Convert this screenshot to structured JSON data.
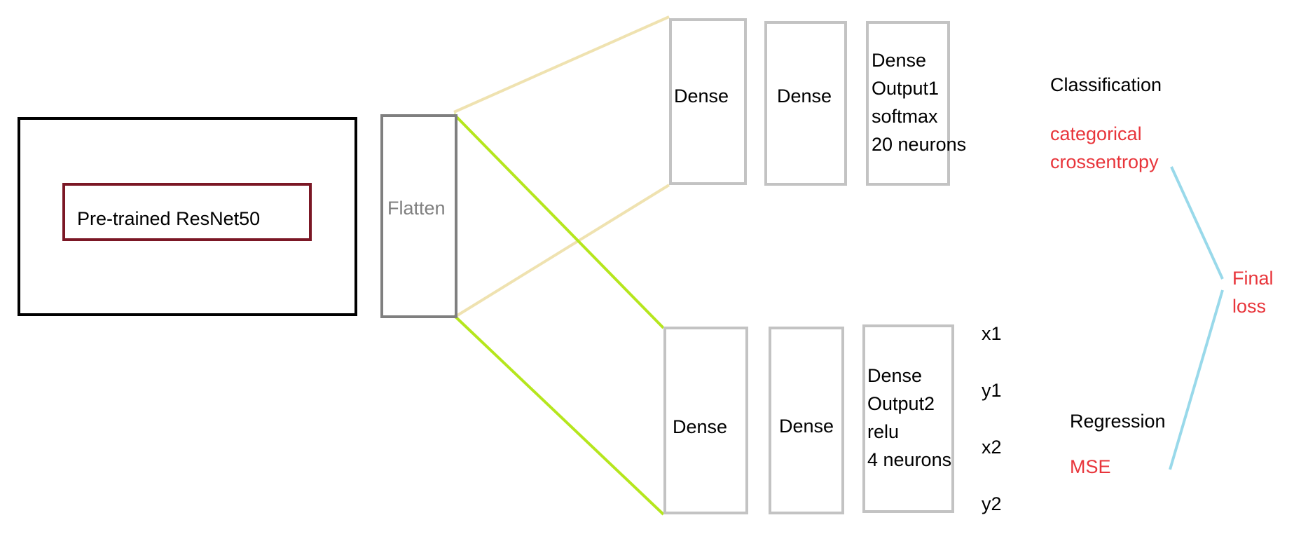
{
  "backbone": {
    "label": "Pre-trained ResNet50"
  },
  "flatten": {
    "label": "Flatten"
  },
  "classification_branch": {
    "dense1": "Dense",
    "dense2": "Dense",
    "output": "Dense\nOutput1\nsoftmax\n20 neurons",
    "task": "Classification",
    "loss": "categorical\ncrossentropy"
  },
  "regression_branch": {
    "dense1": "Dense",
    "dense2": "Dense",
    "output": "Dense\nOutput2\nrelu\n4 neurons",
    "outputs": [
      "x1",
      "y1",
      "x2",
      "y2"
    ],
    "task": "Regression",
    "loss": "MSE"
  },
  "final_loss": {
    "label": "Final\nloss"
  },
  "colors": {
    "backbone_outer": "#000000",
    "backbone_inner": "#7b1725",
    "flatten_border": "#7f7f7f",
    "dense_border": "#c3c3c3",
    "classification_connector": "#efe2b0",
    "regression_connector": "#b5e61d",
    "loss_connector": "#99d9ea",
    "loss_text": "#e8353b"
  }
}
